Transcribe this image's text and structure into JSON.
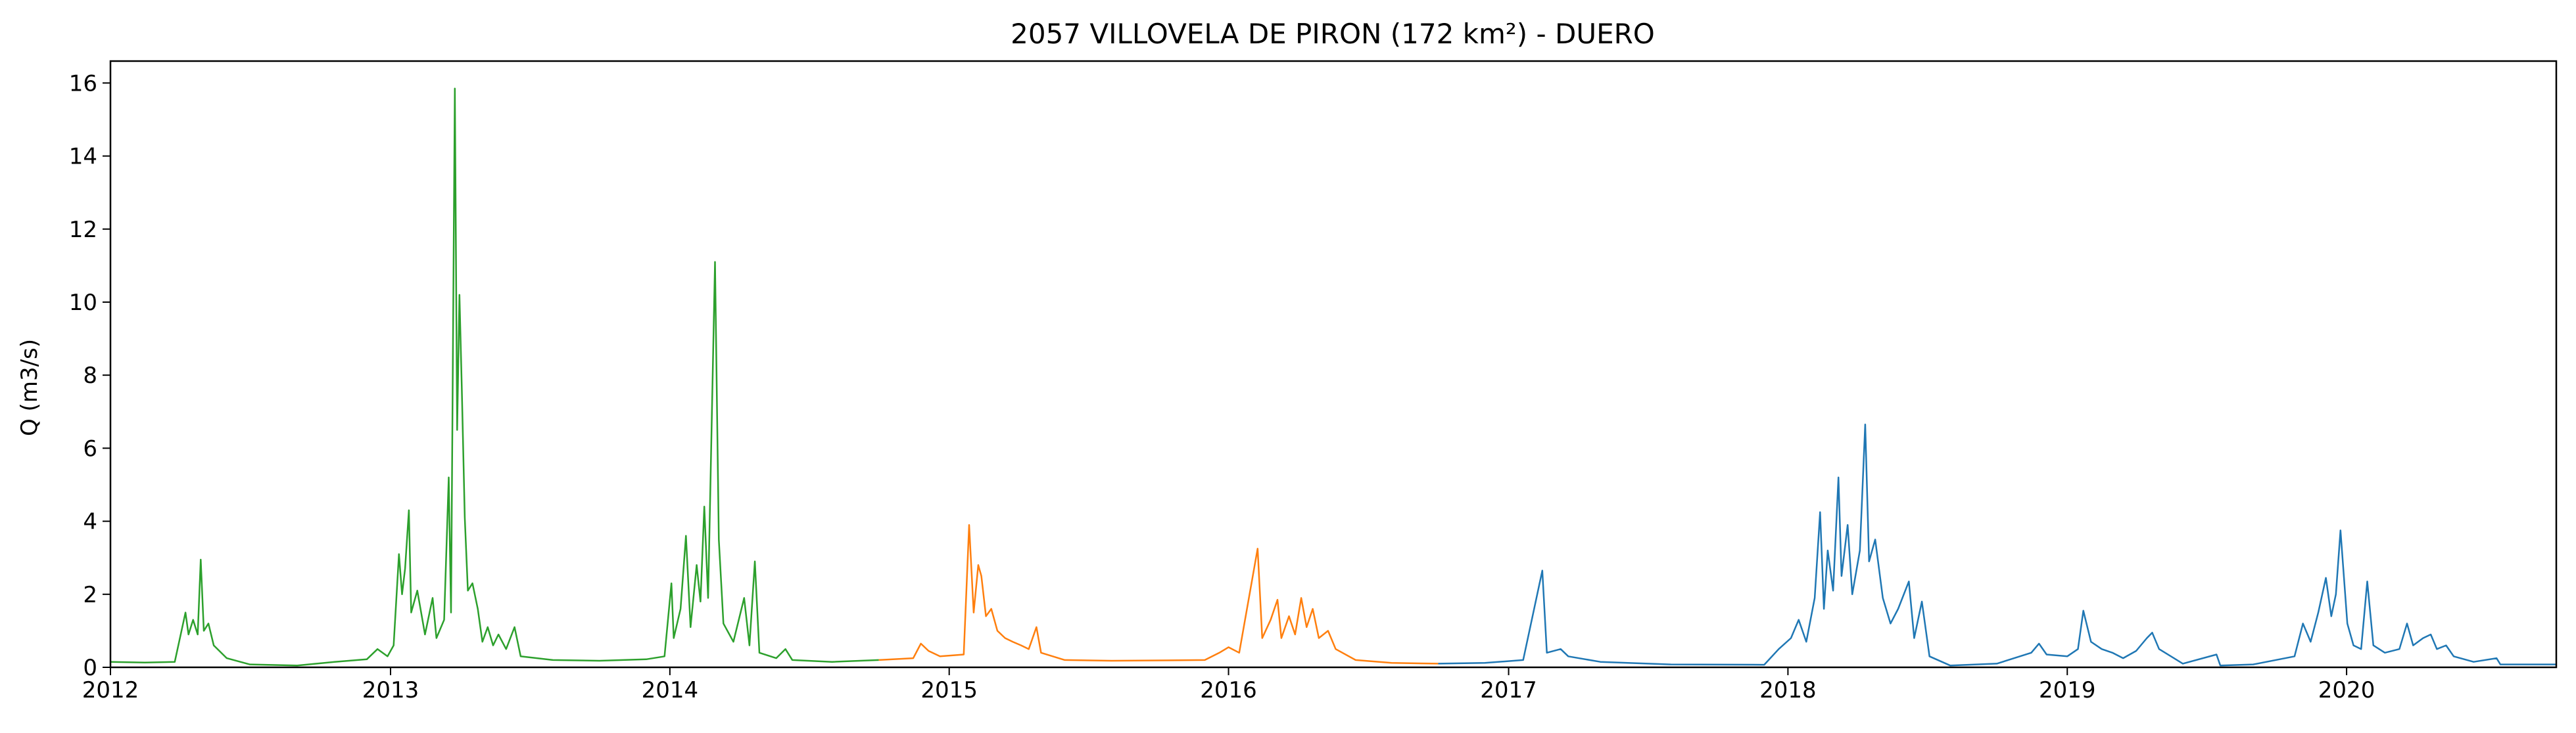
{
  "chart_data": {
    "type": "line",
    "title": "2057 VILLOVELA DE PIRON (172 km²) - DUERO",
    "xlabel": "",
    "ylabel": "Q (m3/s)",
    "xlim": [
      "2012-01-01",
      "2020-10-01"
    ],
    "ylim": [
      0,
      16.6
    ],
    "x_ticks": [
      "2012",
      "2013",
      "2014",
      "2015",
      "2016",
      "2017",
      "2018",
      "2019",
      "2020"
    ],
    "y_ticks": [
      "0",
      "2",
      "4",
      "6",
      "8",
      "10",
      "12",
      "14",
      "16"
    ],
    "grid": false,
    "series": [
      {
        "color": "#2ca02c",
        "points": [
          [
            "2012-01-01",
            0.15
          ],
          [
            "2012-02-15",
            0.13
          ],
          [
            "2012-03-25",
            0.15
          ],
          [
            "2012-04-08",
            1.5
          ],
          [
            "2012-04-12",
            0.9
          ],
          [
            "2012-04-18",
            1.3
          ],
          [
            "2012-04-24",
            0.9
          ],
          [
            "2012-04-28",
            2.95
          ],
          [
            "2012-05-02",
            1.0
          ],
          [
            "2012-05-08",
            1.2
          ],
          [
            "2012-05-15",
            0.6
          ],
          [
            "2012-06-01",
            0.25
          ],
          [
            "2012-07-01",
            0.08
          ],
          [
            "2012-09-01",
            0.05
          ],
          [
            "2012-10-20",
            0.15
          ],
          [
            "2012-12-01",
            0.22
          ],
          [
            "2012-12-15",
            0.5
          ],
          [
            "2012-12-28",
            0.3
          ],
          [
            "2013-01-05",
            0.6
          ],
          [
            "2013-01-12",
            3.1
          ],
          [
            "2013-01-16",
            2.0
          ],
          [
            "2013-01-20",
            2.7
          ],
          [
            "2013-01-25",
            4.3
          ],
          [
            "2013-01-28",
            1.5
          ],
          [
            "2013-02-05",
            2.1
          ],
          [
            "2013-02-15",
            0.9
          ],
          [
            "2013-02-25",
            1.9
          ],
          [
            "2013-03-02",
            0.8
          ],
          [
            "2013-03-12",
            1.3
          ],
          [
            "2013-03-18",
            5.2
          ],
          [
            "2013-03-21",
            1.5
          ],
          [
            "2013-03-26",
            15.85
          ],
          [
            "2013-03-29",
            6.5
          ],
          [
            "2013-04-01",
            10.2
          ],
          [
            "2013-04-04",
            7.7
          ],
          [
            "2013-04-08",
            4.1
          ],
          [
            "2013-04-12",
            2.1
          ],
          [
            "2013-04-18",
            2.3
          ],
          [
            "2013-04-25",
            1.6
          ],
          [
            "2013-05-01",
            0.7
          ],
          [
            "2013-05-08",
            1.1
          ],
          [
            "2013-05-15",
            0.6
          ],
          [
            "2013-05-22",
            0.9
          ],
          [
            "2013-06-01",
            0.5
          ],
          [
            "2013-06-12",
            1.1
          ],
          [
            "2013-06-20",
            0.3
          ],
          [
            "2013-08-01",
            0.2
          ],
          [
            "2013-10-01",
            0.18
          ],
          [
            "2013-12-01",
            0.22
          ],
          [
            "2013-12-25",
            0.3
          ],
          [
            "2014-01-03",
            2.3
          ],
          [
            "2014-01-06",
            0.8
          ],
          [
            "2014-01-15",
            1.6
          ],
          [
            "2014-01-22",
            3.6
          ],
          [
            "2014-01-28",
            1.1
          ],
          [
            "2014-02-05",
            2.8
          ],
          [
            "2014-02-10",
            1.8
          ],
          [
            "2014-02-15",
            4.4
          ],
          [
            "2014-02-20",
            1.9
          ],
          [
            "2014-03-01",
            11.1
          ],
          [
            "2014-03-06",
            3.5
          ],
          [
            "2014-03-12",
            1.2
          ],
          [
            "2014-03-25",
            0.7
          ],
          [
            "2014-04-08",
            1.9
          ],
          [
            "2014-04-15",
            0.6
          ],
          [
            "2014-04-22",
            2.9
          ],
          [
            "2014-04-28",
            0.4
          ],
          [
            "2014-05-20",
            0.25
          ],
          [
            "2014-06-01",
            0.5
          ],
          [
            "2014-06-10",
            0.2
          ],
          [
            "2014-08-01",
            0.15
          ],
          [
            "2014-10-01",
            0.2
          ]
        ]
      },
      {
        "color": "#ff7f0e",
        "points": [
          [
            "2014-10-01",
            0.2
          ],
          [
            "2014-11-15",
            0.25
          ],
          [
            "2014-11-25",
            0.65
          ],
          [
            "2014-12-05",
            0.45
          ],
          [
            "2014-12-20",
            0.3
          ],
          [
            "2015-01-20",
            0.35
          ],
          [
            "2015-01-27",
            3.9
          ],
          [
            "2015-02-02",
            1.5
          ],
          [
            "2015-02-08",
            2.8
          ],
          [
            "2015-02-12",
            2.5
          ],
          [
            "2015-02-18",
            1.4
          ],
          [
            "2015-02-25",
            1.6
          ],
          [
            "2015-03-05",
            1.0
          ],
          [
            "2015-03-15",
            0.8
          ],
          [
            "2015-03-25",
            0.7
          ],
          [
            "2015-04-05",
            0.6
          ],
          [
            "2015-04-15",
            0.5
          ],
          [
            "2015-04-25",
            1.1
          ],
          [
            "2015-05-01",
            0.4
          ],
          [
            "2015-06-01",
            0.2
          ],
          [
            "2015-08-01",
            0.18
          ],
          [
            "2015-12-01",
            0.2
          ],
          [
            "2015-12-20",
            0.4
          ],
          [
            "2016-01-01",
            0.55
          ],
          [
            "2016-01-15",
            0.4
          ],
          [
            "2016-02-08",
            3.25
          ],
          [
            "2016-02-14",
            0.8
          ],
          [
            "2016-02-25",
            1.3
          ],
          [
            "2016-03-05",
            1.85
          ],
          [
            "2016-03-10",
            0.8
          ],
          [
            "2016-03-20",
            1.4
          ],
          [
            "2016-03-28",
            0.9
          ],
          [
            "2016-04-05",
            1.9
          ],
          [
            "2016-04-12",
            1.1
          ],
          [
            "2016-04-20",
            1.6
          ],
          [
            "2016-04-28",
            0.8
          ],
          [
            "2016-05-10",
            1.0
          ],
          [
            "2016-05-20",
            0.5
          ],
          [
            "2016-06-15",
            0.2
          ],
          [
            "2016-08-01",
            0.12
          ],
          [
            "2016-10-01",
            0.1
          ]
        ]
      },
      {
        "color": "#1f77b4",
        "points": [
          [
            "2016-10-01",
            0.1
          ],
          [
            "2016-12-01",
            0.12
          ],
          [
            "2017-01-20",
            0.2
          ],
          [
            "2017-02-14",
            2.65
          ],
          [
            "2017-02-20",
            0.4
          ],
          [
            "2017-03-10",
            0.5
          ],
          [
            "2017-03-20",
            0.3
          ],
          [
            "2017-05-01",
            0.15
          ],
          [
            "2017-08-01",
            0.08
          ],
          [
            "2017-12-01",
            0.07
          ],
          [
            "2017-12-20",
            0.5
          ],
          [
            "2018-01-05",
            0.8
          ],
          [
            "2018-01-15",
            1.3
          ],
          [
            "2018-01-25",
            0.7
          ],
          [
            "2018-02-05",
            1.9
          ],
          [
            "2018-02-12",
            4.25
          ],
          [
            "2018-02-17",
            1.6
          ],
          [
            "2018-02-22",
            3.2
          ],
          [
            "2018-03-01",
            2.1
          ],
          [
            "2018-03-08",
            5.2
          ],
          [
            "2018-03-12",
            2.5
          ],
          [
            "2018-03-20",
            3.9
          ],
          [
            "2018-03-26",
            2.0
          ],
          [
            "2018-04-05",
            3.2
          ],
          [
            "2018-04-12",
            6.65
          ],
          [
            "2018-04-17",
            2.9
          ],
          [
            "2018-04-25",
            3.5
          ],
          [
            "2018-05-05",
            1.9
          ],
          [
            "2018-05-15",
            1.2
          ],
          [
            "2018-05-25",
            1.6
          ],
          [
            "2018-06-08",
            2.35
          ],
          [
            "2018-06-15",
            0.8
          ],
          [
            "2018-06-25",
            1.8
          ],
          [
            "2018-07-05",
            0.3
          ],
          [
            "2018-08-01",
            0.05
          ],
          [
            "2018-10-01",
            0.1
          ],
          [
            "2018-11-15",
            0.4
          ],
          [
            "2018-11-25",
            0.65
          ],
          [
            "2018-12-05",
            0.35
          ],
          [
            "2019-01-01",
            0.3
          ],
          [
            "2019-01-15",
            0.5
          ],
          [
            "2019-01-22",
            1.55
          ],
          [
            "2019-02-01",
            0.7
          ],
          [
            "2019-02-15",
            0.5
          ],
          [
            "2019-03-01",
            0.4
          ],
          [
            "2019-03-15",
            0.25
          ],
          [
            "2019-04-01",
            0.45
          ],
          [
            "2019-04-15",
            0.8
          ],
          [
            "2019-04-22",
            0.95
          ],
          [
            "2019-05-01",
            0.5
          ],
          [
            "2019-06-01",
            0.1
          ],
          [
            "2019-07-15",
            0.35
          ],
          [
            "2019-07-20",
            0.05
          ],
          [
            "2019-09-01",
            0.08
          ],
          [
            "2019-10-25",
            0.3
          ],
          [
            "2019-11-05",
            1.2
          ],
          [
            "2019-11-15",
            0.7
          ],
          [
            "2019-11-25",
            1.5
          ],
          [
            "2019-12-05",
            2.45
          ],
          [
            "2019-12-12",
            1.4
          ],
          [
            "2019-12-18",
            2.0
          ],
          [
            "2019-12-24",
            3.75
          ],
          [
            "2020-01-02",
            1.2
          ],
          [
            "2020-01-10",
            0.6
          ],
          [
            "2020-01-20",
            0.5
          ],
          [
            "2020-01-28",
            2.35
          ],
          [
            "2020-02-05",
            0.6
          ],
          [
            "2020-02-20",
            0.4
          ],
          [
            "2020-03-10",
            0.5
          ],
          [
            "2020-03-20",
            1.2
          ],
          [
            "2020-03-28",
            0.6
          ],
          [
            "2020-04-10",
            0.8
          ],
          [
            "2020-04-20",
            0.9
          ],
          [
            "2020-04-28",
            0.5
          ],
          [
            "2020-05-10",
            0.6
          ],
          [
            "2020-05-20",
            0.3
          ],
          [
            "2020-06-15",
            0.15
          ],
          [
            "2020-07-15",
            0.25
          ],
          [
            "2020-07-20",
            0.08
          ],
          [
            "2020-10-01",
            0.08
          ]
        ]
      }
    ]
  }
}
